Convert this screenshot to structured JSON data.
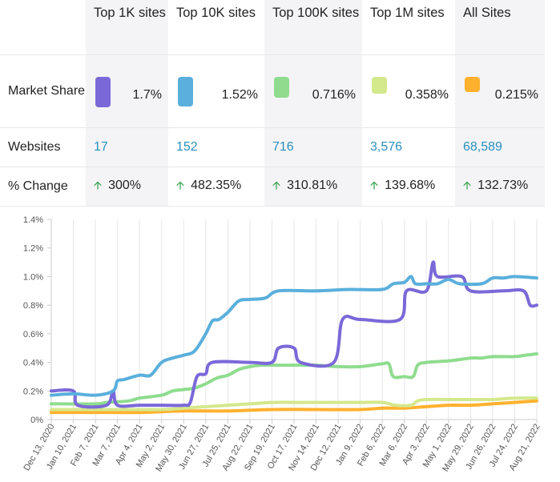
{
  "table": {
    "headers": [
      "",
      "Top 1K sites",
      "Top 10K sites",
      "Top 100K sites",
      "Top 1M sites",
      "All Sites"
    ],
    "rows": {
      "market_share": {
        "label": "Market Share",
        "values": [
          "1.7%",
          "1.52%",
          "0.716%",
          "0.358%",
          "0.215%"
        ]
      },
      "websites": {
        "label": "Websites",
        "values": [
          "17",
          "152",
          "716",
          "3,576",
          "68,589"
        ]
      },
      "pct_change": {
        "label": "% Change",
        "values": [
          "300%",
          "482.35%",
          "310.81%",
          "139.68%",
          "132.73%"
        ]
      }
    },
    "colors": [
      "#7b68d8",
      "#5aafdc",
      "#8fdc8f",
      "#d4e88c",
      "#ffb12e"
    ],
    "up_arrow_icon": "arrow-up-icon",
    "up_color": "#3aa352",
    "link_color": "#2a8fbd"
  },
  "chart_data": {
    "type": "line",
    "x": [
      "Dec 13, 2020",
      "Jan 10, 2021",
      "Feb 7, 2021",
      "Mar 7, 2021",
      "Apr 4, 2021",
      "May 2, 2021",
      "May 30, 2021",
      "Jun 27, 2021",
      "Jul 25, 2021",
      "Aug 22, 2021",
      "Sep 19, 2021",
      "Oct 17, 2021",
      "Nov 14, 2021",
      "Dec 12, 2021",
      "Jan 9, 2022",
      "Feb 6, 2022",
      "Mar 6, 2022",
      "Apr 3, 2022",
      "May 1, 2022",
      "May 29, 2022",
      "Jun 26, 2022",
      "Jul 24, 2022",
      "Aug 21, 2022"
    ],
    "y_ticks": [
      "0%",
      "0.2%",
      "0.4%",
      "0.6%",
      "0.8%",
      "1.0%",
      "1.2%",
      "1.4%"
    ],
    "ylim": [
      0,
      1.4
    ],
    "grid": "vertical",
    "series": [
      {
        "color": "#5aafdc",
        "points": [
          [
            0,
            0.17
          ],
          [
            1,
            0.18
          ],
          [
            2,
            0.17
          ],
          [
            2.8,
            0.2
          ],
          [
            3,
            0.27
          ],
          [
            3.3,
            0.28
          ],
          [
            4,
            0.31
          ],
          [
            4.5,
            0.31
          ],
          [
            5,
            0.4
          ],
          [
            5.5,
            0.43
          ],
          [
            6,
            0.45
          ],
          [
            6.5,
            0.48
          ],
          [
            7,
            0.6
          ],
          [
            7.3,
            0.69
          ],
          [
            7.6,
            0.7
          ],
          [
            8,
            0.75
          ],
          [
            8.5,
            0.83
          ],
          [
            9,
            0.84
          ],
          [
            9.7,
            0.85
          ],
          [
            10.3,
            0.9
          ],
          [
            12,
            0.9
          ],
          [
            13.5,
            0.91
          ],
          [
            15,
            0.91
          ],
          [
            15.5,
            0.95
          ],
          [
            16,
            0.96
          ],
          [
            16.3,
            1.0
          ],
          [
            16.5,
            0.95
          ],
          [
            17,
            0.95
          ],
          [
            17.5,
            0.95
          ],
          [
            18,
            0.98
          ],
          [
            18.5,
            0.95
          ],
          [
            19.5,
            0.95
          ],
          [
            20,
            0.99
          ],
          [
            20.5,
            0.99
          ],
          [
            21,
            1.0
          ],
          [
            22,
            0.99
          ]
        ]
      },
      {
        "color": "#7b68d8",
        "points": [
          [
            0,
            0.2
          ],
          [
            1,
            0.2
          ],
          [
            1.2,
            0.1
          ],
          [
            2.5,
            0.1
          ],
          [
            2.8,
            0.2
          ],
          [
            3,
            0.1
          ],
          [
            4,
            0.1
          ],
          [
            5,
            0.1
          ],
          [
            6,
            0.1
          ],
          [
            6.3,
            0.12
          ],
          [
            6.6,
            0.3
          ],
          [
            7,
            0.32
          ],
          [
            7.3,
            0.4
          ],
          [
            9,
            0.4
          ],
          [
            10,
            0.4
          ],
          [
            10.3,
            0.5
          ],
          [
            11,
            0.5
          ],
          [
            11.3,
            0.4
          ],
          [
            12.8,
            0.4
          ],
          [
            13.2,
            0.7
          ],
          [
            14,
            0.7
          ],
          [
            15.8,
            0.7
          ],
          [
            16.1,
            0.9
          ],
          [
            17,
            0.9
          ],
          [
            17.3,
            1.1
          ],
          [
            17.5,
            1.0
          ],
          [
            18.6,
            1.0
          ],
          [
            19,
            0.9
          ],
          [
            20.5,
            0.9
          ],
          [
            21.4,
            0.9
          ],
          [
            21.7,
            0.8
          ],
          [
            22,
            0.8
          ]
        ]
      },
      {
        "color": "#8fdc8f",
        "points": [
          [
            0,
            0.11
          ],
          [
            2,
            0.11
          ],
          [
            2.5,
            0.12
          ],
          [
            3.5,
            0.13
          ],
          [
            4,
            0.15
          ],
          [
            5,
            0.17
          ],
          [
            5.5,
            0.2
          ],
          [
            6,
            0.21
          ],
          [
            6.5,
            0.22
          ],
          [
            7,
            0.25
          ],
          [
            7.5,
            0.29
          ],
          [
            8,
            0.31
          ],
          [
            8.5,
            0.35
          ],
          [
            9,
            0.37
          ],
          [
            9.5,
            0.38
          ],
          [
            10,
            0.38
          ],
          [
            11,
            0.38
          ],
          [
            12,
            0.38
          ],
          [
            13,
            0.37
          ],
          [
            14,
            0.37
          ],
          [
            15,
            0.39
          ],
          [
            15.3,
            0.39
          ],
          [
            15.5,
            0.3
          ],
          [
            16,
            0.3
          ],
          [
            16.4,
            0.3
          ],
          [
            16.6,
            0.38
          ],
          [
            17,
            0.4
          ],
          [
            18,
            0.41
          ],
          [
            19,
            0.43
          ],
          [
            19.5,
            0.43
          ],
          [
            20,
            0.44
          ],
          [
            21,
            0.44
          ],
          [
            21.5,
            0.45
          ],
          [
            22,
            0.46
          ]
        ]
      },
      {
        "color": "#d4e88c",
        "points": [
          [
            0,
            0.07
          ],
          [
            2,
            0.07
          ],
          [
            3,
            0.07
          ],
          [
            5,
            0.07
          ],
          [
            6,
            0.08
          ],
          [
            7,
            0.09
          ],
          [
            8,
            0.1
          ],
          [
            9,
            0.11
          ],
          [
            10,
            0.12
          ],
          [
            11,
            0.12
          ],
          [
            12,
            0.12
          ],
          [
            13,
            0.12
          ],
          [
            14,
            0.12
          ],
          [
            15,
            0.12
          ],
          [
            15.6,
            0.1
          ],
          [
            16.3,
            0.1
          ],
          [
            16.6,
            0.13
          ],
          [
            17,
            0.14
          ],
          [
            18,
            0.14
          ],
          [
            19,
            0.14
          ],
          [
            20,
            0.14
          ],
          [
            21,
            0.15
          ],
          [
            22,
            0.15
          ]
        ]
      },
      {
        "color": "#ffb12e",
        "points": [
          [
            0,
            0.05
          ],
          [
            2,
            0.05
          ],
          [
            4,
            0.05
          ],
          [
            6,
            0.06
          ],
          [
            8,
            0.06
          ],
          [
            10,
            0.07
          ],
          [
            12,
            0.07
          ],
          [
            14,
            0.07
          ],
          [
            15,
            0.08
          ],
          [
            16,
            0.08
          ],
          [
            17,
            0.09
          ],
          [
            18,
            0.1
          ],
          [
            19,
            0.1
          ],
          [
            20,
            0.11
          ],
          [
            21,
            0.12
          ],
          [
            22,
            0.13
          ]
        ]
      }
    ]
  }
}
